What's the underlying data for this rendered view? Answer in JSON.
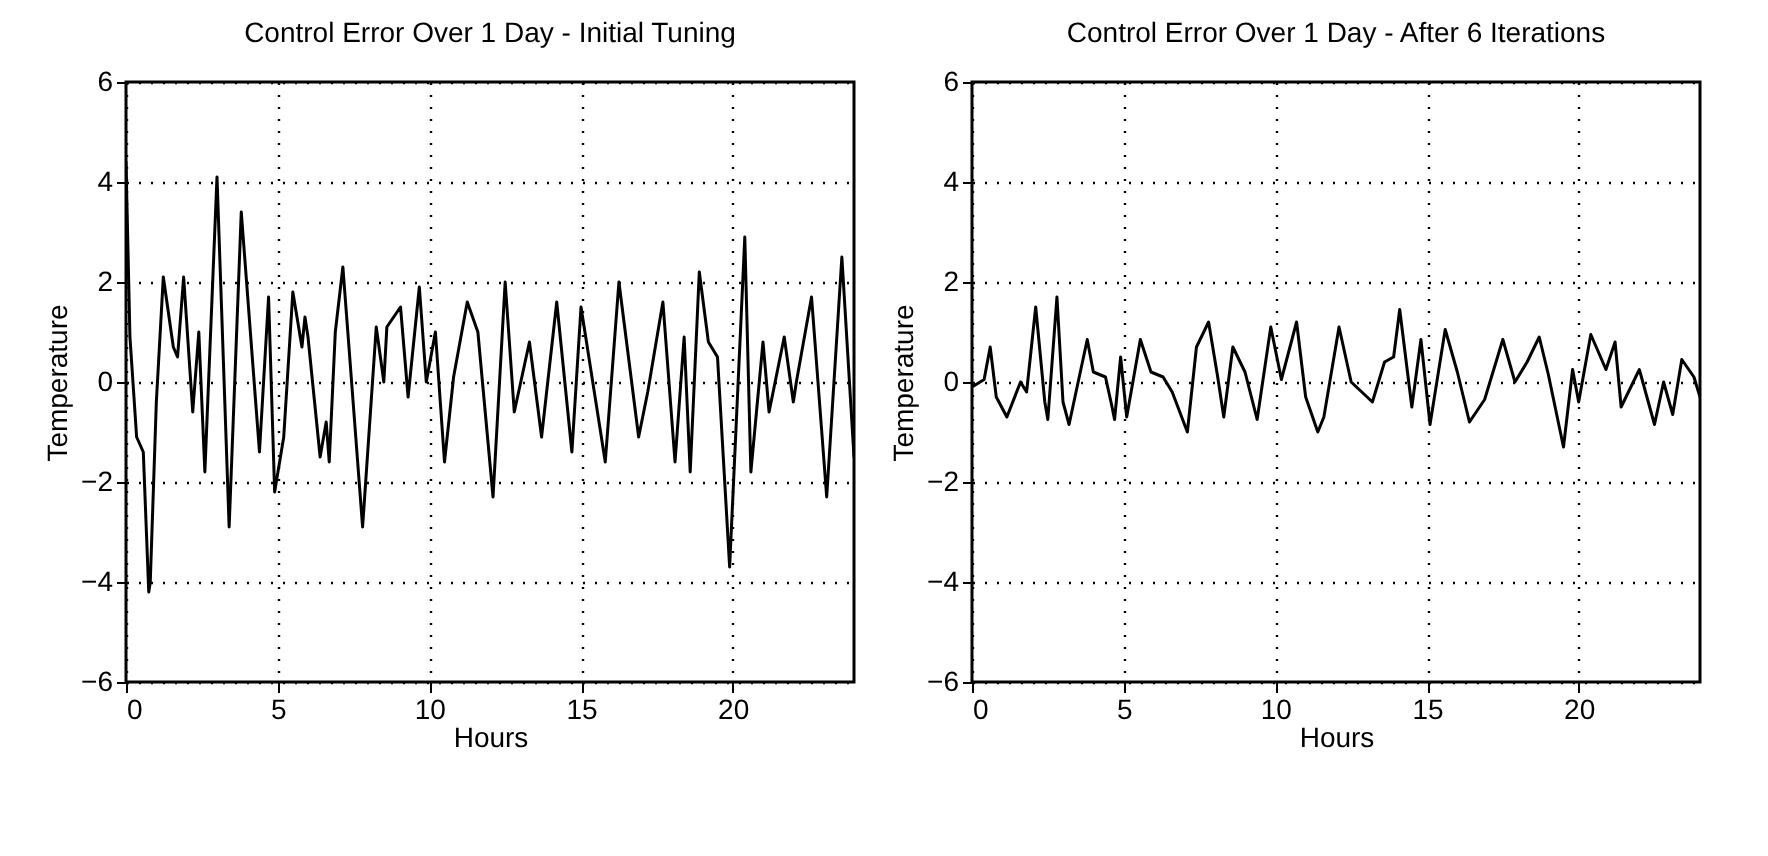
{
  "chart_data": [
    {
      "type": "line",
      "title": "Control Error Over 1 Day - Initial Tuning",
      "xlabel": "Hours",
      "ylabel": "Temperature",
      "xlim": [
        0,
        24
      ],
      "xticks": [
        0,
        5,
        10,
        15,
        20
      ],
      "ylim": [
        -6,
        6
      ],
      "yticks": [
        -6,
        -4,
        -2,
        0,
        2,
        4,
        6
      ],
      "grid": true,
      "line_style": "solid",
      "x": [
        0,
        0.13,
        0.35,
        0.57,
        0.75,
        0.8,
        1.0,
        1.23,
        1.56,
        1.7,
        1.9,
        2.2,
        2.4,
        2.6,
        3.0,
        3.4,
        3.8,
        4.4,
        4.7,
        4.9,
        5.2,
        5.5,
        5.8,
        5.9,
        6.0,
        6.4,
        6.6,
        6.7,
        6.9,
        7.15,
        7.8,
        8.25,
        8.5,
        8.6,
        9.05,
        9.3,
        9.67,
        9.9,
        10.2,
        10.5,
        10.8,
        11.25,
        11.6,
        12.1,
        12.5,
        12.8,
        13.3,
        13.7,
        14.2,
        14.7,
        15.0,
        15.8,
        16.25,
        16.9,
        17.2,
        17.7,
        18.1,
        18.4,
        18.6,
        18.9,
        19.2,
        19.5,
        19.9,
        20.4,
        20.6,
        21.0,
        21.2,
        21.7,
        22.0,
        22.1,
        22.6,
        23.1,
        23.6,
        24
      ],
      "series": [
        {
          "color": "#000000",
          "values": [
            4.4,
            0.9,
            -1.1,
            -1.4,
            -4.2,
            -4.0,
            -0.4,
            2.1,
            0.7,
            0.5,
            2.1,
            -0.6,
            1.0,
            -1.8,
            4.1,
            -2.9,
            3.4,
            -1.4,
            1.7,
            -2.2,
            -1.1,
            1.8,
            0.7,
            1.3,
            0.9,
            -1.5,
            -0.8,
            -1.6,
            1.0,
            2.3,
            -2.9,
            1.1,
            0.0,
            1.1,
            1.5,
            -0.3,
            1.9,
            0.0,
            1.0,
            -1.6,
            0.1,
            1.6,
            1.0,
            -2.3,
            2.0,
            -0.6,
            0.8,
            -1.1,
            1.6,
            -1.4,
            1.5,
            -1.6,
            2.0,
            -1.1,
            -0.2,
            1.6,
            -1.6,
            0.9,
            -1.8,
            2.2,
            0.8,
            0.5,
            -3.7,
            2.9,
            -1.8,
            0.8,
            -0.6,
            0.9,
            -0.4,
            0.0,
            1.7,
            -2.3,
            2.5,
            -1.5
          ]
        }
      ]
    },
    {
      "type": "line",
      "title": "Control Error Over 1 Day - After 6 Iterations",
      "xlabel": "Hours",
      "ylabel": "Temperature",
      "xlim": [
        0,
        24
      ],
      "xticks": [
        0,
        5,
        10,
        15,
        20
      ],
      "ylim": [
        -6,
        6
      ],
      "yticks": [
        -6,
        -4,
        -2,
        0,
        2,
        4,
        6
      ],
      "grid": true,
      "line_style": "solid",
      "x": [
        0,
        0.4,
        0.6,
        0.8,
        1.15,
        1.6,
        1.8,
        2.1,
        2.4,
        2.5,
        2.8,
        3.0,
        3.2,
        3.8,
        4.0,
        4.4,
        4.6,
        4.7,
        4.9,
        5.1,
        5.55,
        5.9,
        6.3,
        6.6,
        7.1,
        7.4,
        7.8,
        8.1,
        8.3,
        8.6,
        9.0,
        9.4,
        9.85,
        10.2,
        10.7,
        11.0,
        11.4,
        11.6,
        12.1,
        12.5,
        13.2,
        13.6,
        13.9,
        14.1,
        14.5,
        14.8,
        15.1,
        15.6,
        16.0,
        16.4,
        16.9,
        17.5,
        17.9,
        18.3,
        18.7,
        19.0,
        19.5,
        19.8,
        20.0,
        20.4,
        20.9,
        21.2,
        21.4,
        22.0,
        22.5,
        22.8,
        23.1,
        23.4,
        23.8,
        24
      ],
      "series": [
        {
          "color": "#000000",
          "values": [
            -0.1,
            0.05,
            0.7,
            -0.3,
            -0.7,
            0.0,
            -0.2,
            1.5,
            -0.4,
            -0.75,
            1.7,
            -0.4,
            -0.85,
            0.85,
            0.2,
            0.1,
            -0.45,
            -0.75,
            0.5,
            -0.7,
            0.85,
            0.2,
            0.1,
            -0.2,
            -1.0,
            0.7,
            1.2,
            0.1,
            -0.7,
            0.7,
            0.2,
            -0.75,
            1.1,
            0.05,
            1.2,
            -0.3,
            -1.0,
            -0.7,
            1.1,
            0.0,
            -0.4,
            0.4,
            0.5,
            1.45,
            -0.5,
            0.85,
            -0.85,
            1.05,
            0.2,
            -0.8,
            -0.35,
            0.85,
            0.0,
            0.4,
            0.9,
            0.15,
            -1.3,
            0.25,
            -0.4,
            0.95,
            0.25,
            0.8,
            -0.5,
            0.25,
            -0.85,
            0.0,
            -0.65,
            0.45,
            0.1,
            -0.3
          ]
        }
      ]
    }
  ]
}
